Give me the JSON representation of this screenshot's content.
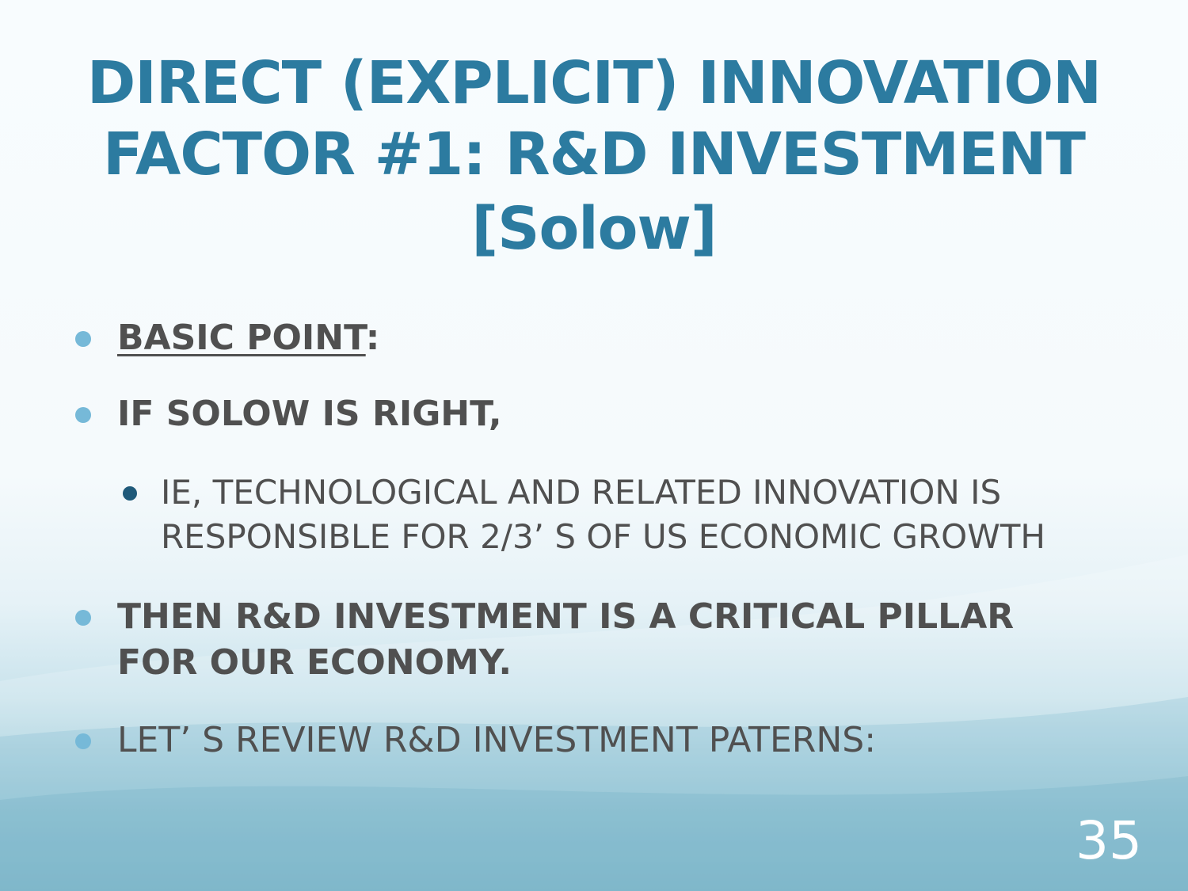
{
  "title": {
    "line1": "DIRECT (EXPLICIT) INNOVATION",
    "line2": "FACTOR #1: R&D INVESTMENT",
    "line3": "[Solow]"
  },
  "bullets": {
    "b1_label": "BASIC POINT",
    "b1_suffix": ":",
    "b2": "IF SOLOW IS RIGHT,",
    "b3_line1": "IE, TECHNOLOGICAL AND RELATED INNOVATION IS",
    "b3_line2": "RESPONSIBLE FOR 2/3’ S OF US ECONOMIC GROWTH",
    "b4_line1": "THEN R&D INVESTMENT IS A CRITICAL PILLAR",
    "b4_line2": "FOR OUR ECONOMY.",
    "b5": "LET’ S REVIEW R&D INVESTMENT PATERNS:"
  },
  "page_number": "35",
  "colors": {
    "title": "#2c7ba0",
    "body_text": "#505050",
    "bullet": "#76b9d8",
    "sub_bullet": "#1f5a7a"
  }
}
